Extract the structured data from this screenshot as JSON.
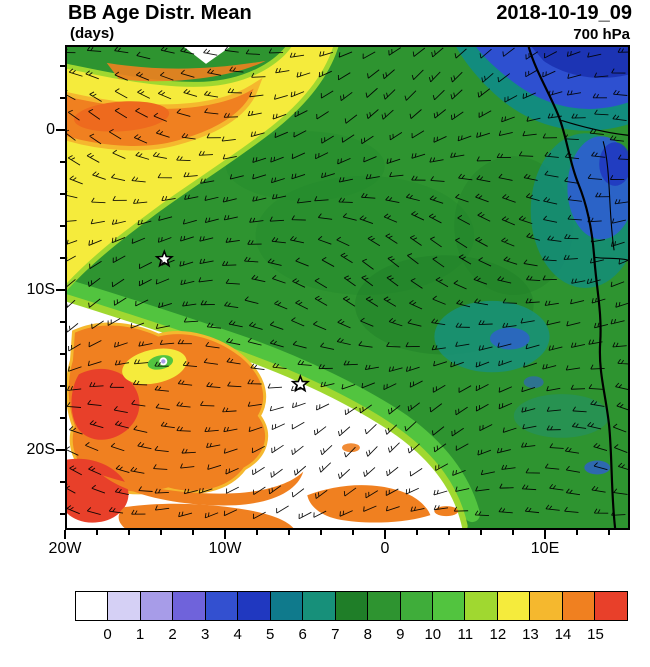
{
  "header": {
    "title": "BB Age Distr. Mean",
    "units_label": "(days)",
    "datetime": "2018-10-19_09",
    "level": "700 hPa"
  },
  "axes": {
    "y_tick_labels": [
      "0",
      "10S",
      "20S"
    ],
    "x_tick_labels": [
      "20W",
      "10W",
      "0",
      "10E"
    ]
  },
  "colorbar": {
    "labels": [
      "0",
      "1",
      "2",
      "3",
      "4",
      "5",
      "6",
      "7",
      "8",
      "9",
      "10",
      "11",
      "12",
      "13",
      "14",
      "15"
    ],
    "colors": [
      "#FFFFFF",
      "#D5D0F5",
      "#A79CE8",
      "#6F63DB",
      "#3350D0",
      "#2038C0",
      "#0F7A8C",
      "#17907A",
      "#1F7E28",
      "#2E9430",
      "#3FAD3A",
      "#52C43F",
      "#A0D830",
      "#F5EB3C",
      "#F5B82E",
      "#F08020",
      "#E8402A"
    ]
  },
  "chart_data": {
    "type": "heatmap",
    "title": "BB Age Distr. Mean",
    "units": "days",
    "valid_time": "2018-10-19_09",
    "pressure_level": "700 hPa",
    "x_axis": {
      "tick_labels": [
        "20W",
        "10W",
        "0",
        "10E"
      ],
      "range_deg_lon": [
        -20,
        15.3
      ]
    },
    "y_axis": {
      "tick_labels": [
        "0",
        "10S",
        "20S"
      ],
      "range_deg_lat": [
        -25,
        5.3
      ]
    },
    "contour_levels": [
      0,
      1,
      2,
      3,
      4,
      5,
      6,
      7,
      8,
      9,
      10,
      11,
      12,
      13,
      14,
      15
    ],
    "palette": [
      "#FFFFFF",
      "#D5D0F5",
      "#A79CE8",
      "#6F63DB",
      "#3350D0",
      "#2038C0",
      "#0F7A8C",
      "#17907A",
      "#1F7E28",
      "#2E9430",
      "#3FAD3A",
      "#52C43F",
      "#A0D830",
      "#F5EB3C",
      "#F5B82E",
      "#F08020",
      "#E8402A"
    ],
    "legend_position": "bottom",
    "overlay": "wind barbs at 700 hPa",
    "markers": [
      {
        "type": "star",
        "lon_deg": -13.9,
        "lat_deg": -8.1
      },
      {
        "type": "star",
        "lon_deg": -5.3,
        "lat_deg": -15.9
      }
    ],
    "field_regions": [
      {
        "area": "northwest plume band",
        "approx_value_days": "11-15",
        "description": "yellow band with orange core stretching from 20W near the equator toward 5W"
      },
      {
        "area": "central Atlantic gyre",
        "approx_value_days": "8-10",
        "description": "broad green region of 8-10 day mean smoke age covering most of the domain and the African coast"
      },
      {
        "area": "coastal Africa north and center",
        "approx_value_days": "3-6",
        "description": "blue and teal patches of younger smoke along the coast near 10E and in the top-right corner"
      },
      {
        "area": "southwest aged blob",
        "approx_value_days": "13-15",
        "description": "orange-red maximum near 20W-12W, 13S-22S with small embedded yellow-green core"
      },
      {
        "area": "southern low-age zone",
        "approx_value_days": "<1",
        "description": "white wedge south of the main plume from 20W to about 3E"
      }
    ]
  }
}
